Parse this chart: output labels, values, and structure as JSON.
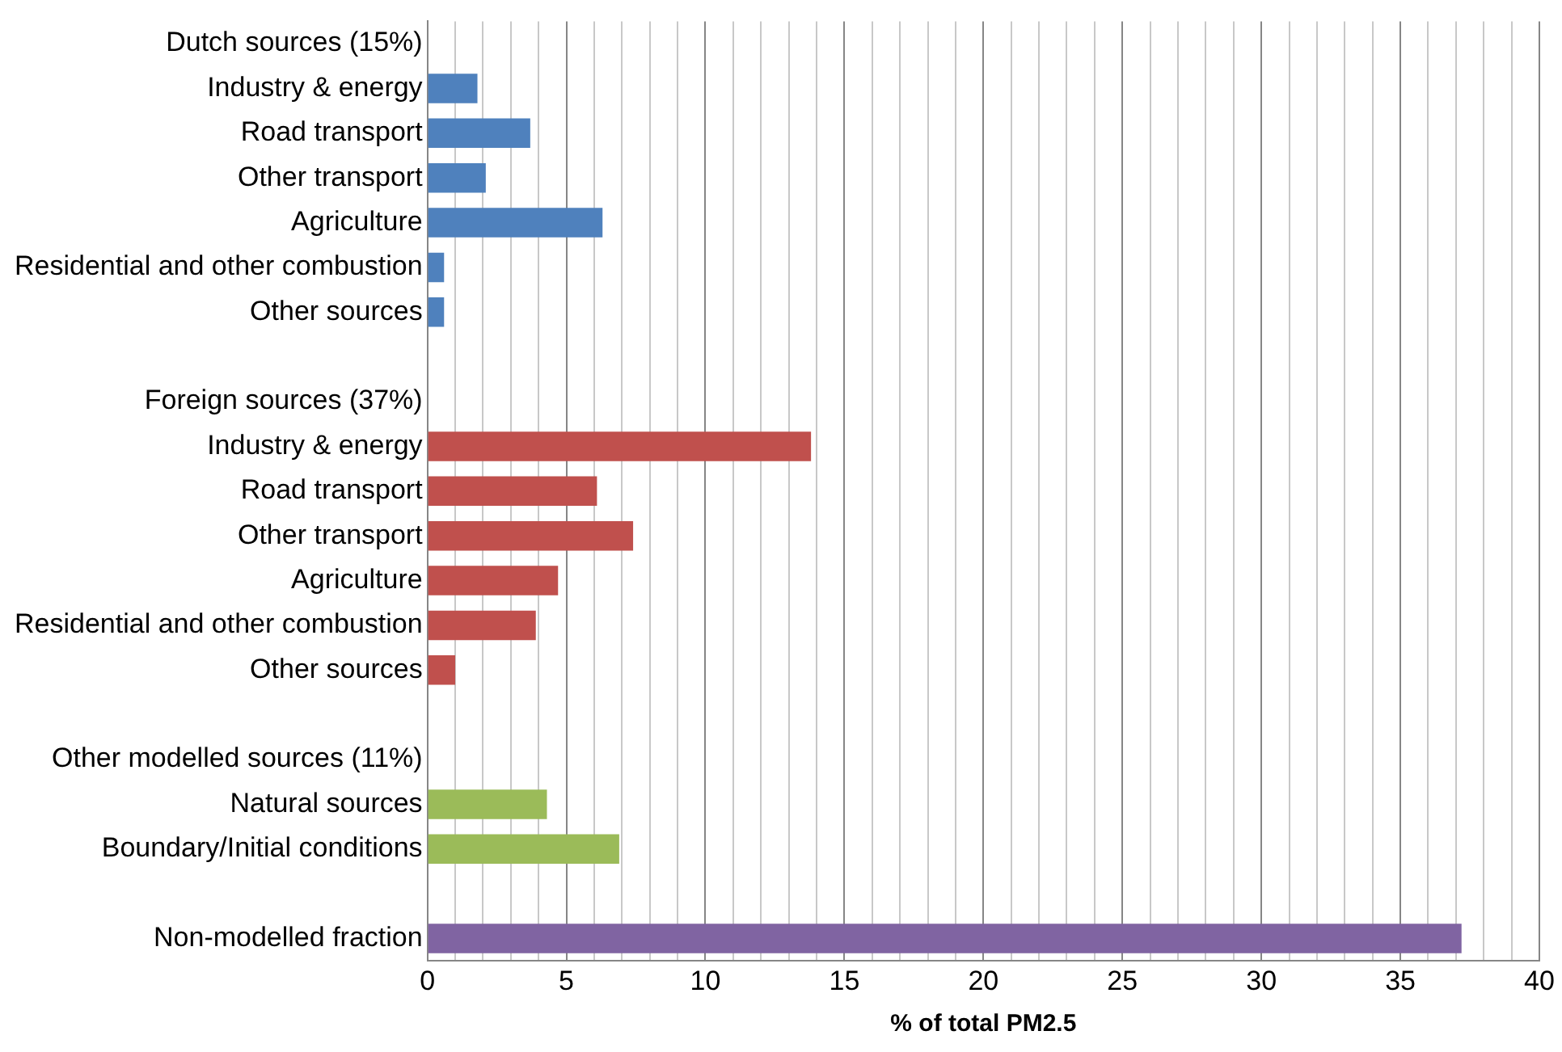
{
  "chart_data": {
    "type": "bar",
    "orientation": "horizontal",
    "xlabel": "% of total PM2.5",
    "categories": [
      "Dutch sources (15%)",
      "Industry & energy",
      "Road transport",
      "Other transport",
      "Agriculture",
      "Residential and other combustion",
      "Other sources",
      null,
      "Foreign sources (37%)",
      "Industry & energy",
      "Road transport",
      "Other transport",
      "Agriculture",
      "Residential and other combustion",
      "Other sources",
      null,
      "Other modelled sources (11%)",
      "Natural sources",
      "Boundary/Initial conditions",
      null,
      "Non-modelled fraction"
    ],
    "values": [
      null,
      1.8,
      3.7,
      2.1,
      6.3,
      0.6,
      0.6,
      null,
      null,
      13.8,
      6.1,
      7.4,
      4.7,
      3.9,
      1.0,
      null,
      null,
      4.3,
      6.9,
      null,
      37.2
    ],
    "colors": [
      "#4f81bd",
      "#4f81bd",
      "#4f81bd",
      "#4f81bd",
      "#4f81bd",
      "#4f81bd",
      "#4f81bd",
      "#4f81bd",
      "#c0504d",
      "#c0504d",
      "#c0504d",
      "#c0504d",
      "#c0504d",
      "#c0504d",
      "#c0504d",
      "#c0504d",
      "#9bbb59",
      "#9bbb59",
      "#9bbb59",
      "#9bbb59",
      "#8064a2"
    ],
    "xlim": [
      0,
      40
    ],
    "xticks": [
      0,
      {
        "value": 1,
        "label": null
      },
      {
        "value": 2,
        "label": null
      },
      {
        "value": 3,
        "label": null
      },
      {
        "value": 4,
        "label": null
      },
      5,
      {
        "value": 6,
        "label": null
      },
      {
        "value": 7,
        "label": null
      },
      {
        "value": 8,
        "label": null
      },
      {
        "value": 9,
        "label": null
      },
      10,
      {
        "value": 11,
        "label": null
      },
      {
        "value": 12,
        "label": null
      },
      {
        "value": 13,
        "label": null
      },
      {
        "value": 14,
        "label": null
      },
      15,
      {
        "value": 16,
        "label": null
      },
      {
        "value": 17,
        "label": null
      },
      {
        "value": 18,
        "label": null
      },
      {
        "value": 19,
        "label": null
      },
      20,
      {
        "value": 21,
        "label": null
      },
      {
        "value": 22,
        "label": null
      },
      {
        "value": 23,
        "label": null
      },
      {
        "value": 24,
        "label": null
      },
      25,
      {
        "value": 26,
        "label": null
      },
      {
        "value": 27,
        "label": null
      },
      {
        "value": 28,
        "label": null
      },
      {
        "value": 29,
        "label": null
      },
      30,
      {
        "value": 31,
        "label": null
      },
      {
        "value": 32,
        "label": null
      },
      {
        "value": 33,
        "label": null
      },
      {
        "value": 34,
        "label": null
      },
      35,
      {
        "value": 36,
        "label": null
      },
      {
        "value": 37,
        "label": null
      },
      {
        "value": 38,
        "label": null
      },
      {
        "value": 39,
        "label": null
      },
      40
    ],
    "grid": "x",
    "legend": false
  }
}
